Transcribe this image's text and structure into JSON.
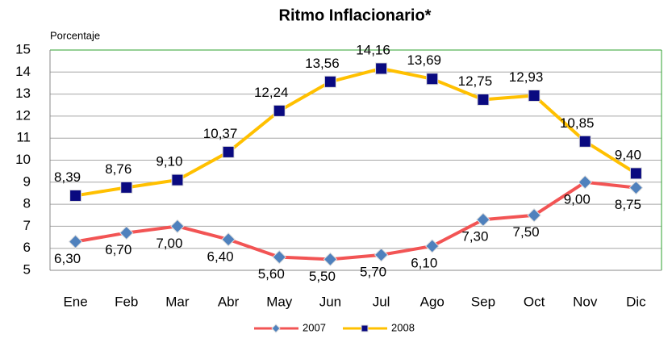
{
  "chart_data": {
    "type": "line",
    "title": "Ritmo Inflacionario*",
    "y_label": "Porcentaje",
    "categories": [
      "Ene",
      "Feb",
      "Mar",
      "Abr",
      "May",
      "Jun",
      "Jul",
      "Ago",
      "Sep",
      "Oct",
      "Nov",
      "Dic"
    ],
    "series": [
      {
        "name": "2007",
        "color": "#f25454",
        "marker_color": "#4f81bd",
        "marker": "diamond",
        "values": [
          6.3,
          6.7,
          7.0,
          6.4,
          5.6,
          5.5,
          5.7,
          6.1,
          7.3,
          7.5,
          9.0,
          8.75
        ],
        "value_labels": [
          "6,30",
          "6,70",
          "7,00",
          "6,40",
          "5,60",
          "5,50",
          "5,70",
          "6,10",
          "7,30",
          "7,50",
          "9,00",
          "8,75"
        ]
      },
      {
        "name": "2008",
        "color": "#ffc000",
        "marker_color": "#0a0a80",
        "marker": "square",
        "values": [
          8.39,
          8.76,
          9.1,
          10.37,
          12.24,
          13.56,
          14.16,
          13.69,
          12.75,
          12.93,
          10.85,
          9.4
        ],
        "value_labels": [
          "8,39",
          "8,76",
          "9,10",
          "10,37",
          "12,24",
          "13,56",
          "14,16",
          "13,69",
          "12,75",
          "12,93",
          "10,85",
          "9,40"
        ]
      }
    ],
    "ylim": [
      5,
      15
    ],
    "yticks": [
      5,
      6,
      7,
      8,
      9,
      10,
      11,
      12,
      13,
      14,
      15
    ],
    "grid": true,
    "legend": "bottom"
  }
}
